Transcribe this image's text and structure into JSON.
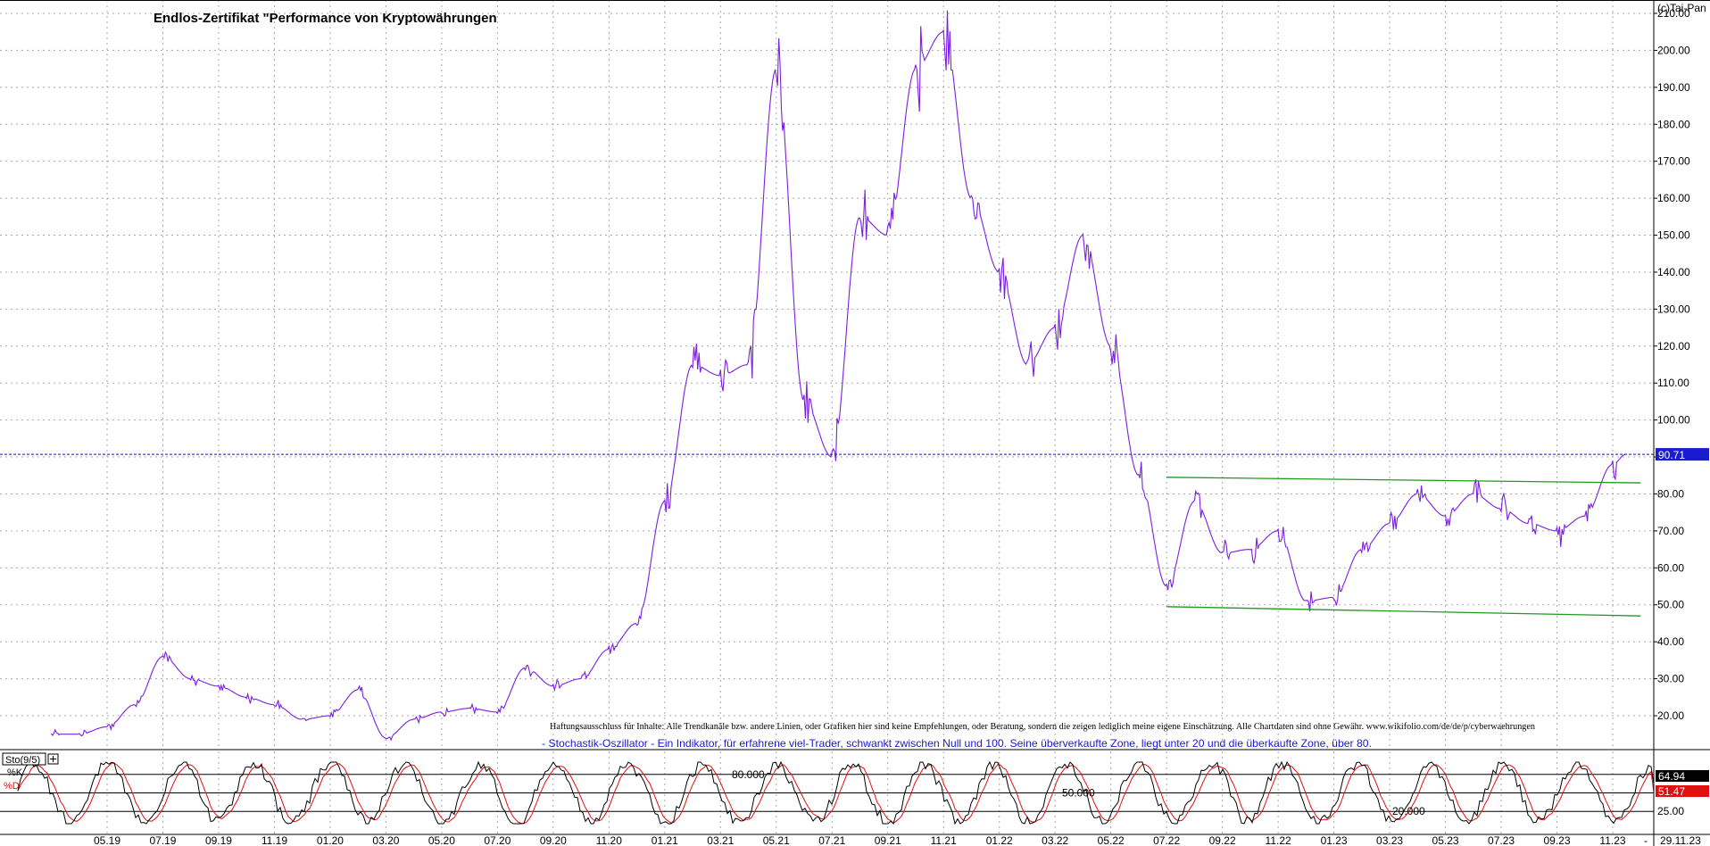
{
  "title": "Endlos-Zertifikat \"Performance von Kryptowährungen",
  "copyright": "(c)Tai-Pan",
  "disclaimer": "Haftungsausschluss für Inhalte: Alle Trendkanäle bzw. andere Linien, oder Grafiken hier sind keine Empfehlungen, oder Beratung, sondern die zeigen lediglich meine eigene Einschätzung. Alle Chartdaten sind ohne Gewähr.  www.wikifolio.com/de/de/p/cyberwaehrungen",
  "indicator_note": "- Stochastik-Oszillator - Ein Indikator, für erfahrene viel-Trader, schwankt zwischen Null und 100. Seine überverkaufte Zone, liegt unter 20 und die überkaufte Zone, über 80.",
  "colors": {
    "price_line": "#7b1fe0",
    "current_line": "#1010e0",
    "current_badge": "#1a1ad0",
    "trend_lines": "#1e9a1e",
    "k_line": "#000000",
    "d_line": "#e01010",
    "d_badge": "#e01010",
    "k_badge": "#000000",
    "grid": "#a8a8a8"
  },
  "chart_data": [
    {
      "type": "line",
      "title": "Endlos-Zertifikat \"Performance von Kryptowährungen",
      "x_ticks": [
        "05.19",
        "07.19",
        "09.19",
        "11.19",
        "01.20",
        "03.20",
        "05.20",
        "07.20",
        "09.20",
        "11.20",
        "01.21",
        "03.21",
        "05.21",
        "07.21",
        "09.21",
        "11.21",
        "01.22",
        "03.22",
        "05.22",
        "07.22",
        "09.22",
        "11.22",
        "01.23",
        "03.23",
        "05.23",
        "07.23",
        "09.23",
        "11.23"
      ],
      "x_end_label": "29.11.23",
      "y_ticks": [
        "20.00",
        "30.00",
        "40.00",
        "50.00",
        "60.00",
        "70.00",
        "80.00",
        "90.00",
        "100.00",
        "110.00",
        "120.00",
        "130.00",
        "140.00",
        "150.00",
        "160.00",
        "170.00",
        "180.00",
        "190.00",
        "200.00",
        "210.00"
      ],
      "ylim": [
        13,
        212
      ],
      "grid": true,
      "series": [
        {
          "x": [
            "2019-03",
            "2019-04",
            "2019-05",
            "2019-06",
            "2019-07",
            "2019-08",
            "2019-09",
            "2019-10",
            "2019-11",
            "2019-12",
            "2020-01",
            "2020-02",
            "2020-03",
            "2020-04",
            "2020-05",
            "2020-06",
            "2020-07",
            "2020-08",
            "2020-09",
            "2020-10",
            "2020-11",
            "2020-12",
            "2021-01",
            "2021-02",
            "2021-03",
            "2021-04",
            "2021-05",
            "2021-06",
            "2021-07",
            "2021-08",
            "2021-09",
            "2021-10",
            "2021-11",
            "2021-12",
            "2022-01",
            "2022-02",
            "2022-03",
            "2022-04",
            "2022-05",
            "2022-06",
            "2022-07",
            "2022-08",
            "2022-09",
            "2022-10",
            "2022-11",
            "2022-12",
            "2023-01",
            "2023-02",
            "2023-03",
            "2023-04",
            "2023-05",
            "2023-06",
            "2023-07",
            "2023-08",
            "2023-09",
            "2023-10",
            "2023-11",
            "2023-11-29"
          ],
          "values": [
            15,
            15,
            17,
            23,
            36,
            30,
            28,
            25,
            23,
            19,
            20,
            27,
            14,
            19,
            21,
            22,
            21,
            33,
            28,
            30,
            38,
            45,
            78,
            115,
            112,
            115,
            195,
            105,
            90,
            155,
            150,
            195,
            205,
            160,
            140,
            115,
            125,
            150,
            120,
            85,
            55,
            78,
            64,
            65,
            70,
            51,
            52,
            65,
            72,
            80,
            74,
            80,
            76,
            72,
            70,
            74,
            88,
            90.71
          ]
        }
      ],
      "current_value": "90.71",
      "annotations": [
        {
          "type": "trend_line",
          "from": [
            "2022-07",
            84.5
          ],
          "to": [
            "2023-12",
            83
          ]
        },
        {
          "type": "trend_line",
          "from": [
            "2022-07",
            49.5
          ],
          "to": [
            "2023-12",
            47
          ]
        }
      ]
    },
    {
      "type": "line",
      "title": "Sto(9/5)",
      "legend": [
        "%K",
        "%D"
      ],
      "y_levels": [
        "80.000",
        "50.000",
        "20.000"
      ],
      "right_ticks": [
        "25.00"
      ],
      "ylim": [
        0,
        100
      ],
      "k_value": "64.94",
      "d_value": "51.47"
    }
  ]
}
